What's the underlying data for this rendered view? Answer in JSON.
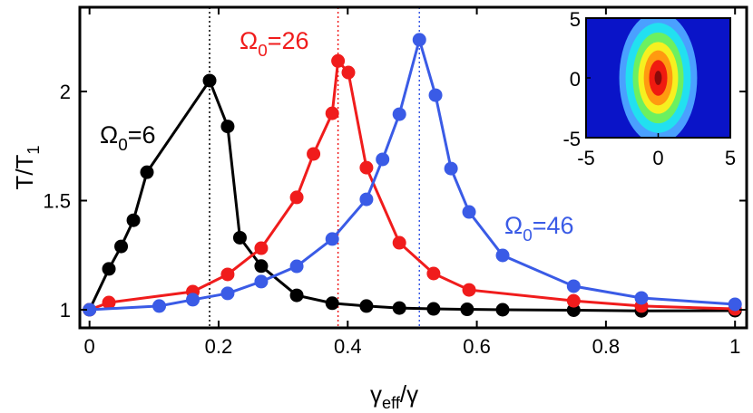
{
  "chart_data": [
    {
      "type": "line",
      "x_label": {
        "text": "γ",
        "subscript": "eff",
        "suffix": "/γ"
      },
      "y_label": {
        "text": "T/T",
        "subscript": "1"
      },
      "xlim": [
        -0.015,
        1.018
      ],
      "ylim": [
        0.917,
        2.386
      ],
      "xticks": [
        0,
        0.2,
        0.4,
        0.6,
        0.8,
        1
      ],
      "yticks": [
        1,
        1.5,
        2
      ],
      "annotations": [
        {
          "text": "Ω",
          "subscript": "0",
          "suffix": "=6",
          "color": "#000000"
        },
        {
          "text": "Ω",
          "subscript": "0",
          "suffix": "=26",
          "color": "#f01c1c"
        },
        {
          "text": "Ω",
          "subscript": "0",
          "suffix": "=46",
          "color": "#3a5be6"
        }
      ],
      "series": [
        {
          "color": "#000000",
          "peak_line_x": 0.186,
          "x": [
            0,
            0.03,
            0.049,
            0.068,
            0.089,
            0.186,
            0.214,
            0.233,
            0.266,
            0.321,
            0.376,
            0.429,
            0.48,
            0.533,
            0.585,
            0.64,
            0.75,
            0.855,
            1.0
          ],
          "values": [
            1,
            1.187,
            1.29,
            1.41,
            1.63,
            2.05,
            1.84,
            1.33,
            1.2,
            1.066,
            1.03,
            1.017,
            1.008,
            1.004,
            1.002,
            1.0,
            0.998,
            0.995,
            0.996
          ]
        },
        {
          "color": "#f01c1c",
          "peak_line_x": 0.385,
          "x": [
            0,
            0.03,
            0.16,
            0.214,
            0.266,
            0.321,
            0.347,
            0.376,
            0.385,
            0.401,
            0.429,
            0.48,
            0.533,
            0.588,
            0.75,
            0.855,
            1.0
          ],
          "values": [
            1,
            1.033,
            1.083,
            1.162,
            1.282,
            1.515,
            1.714,
            1.9,
            2.14,
            2.087,
            1.651,
            1.307,
            1.166,
            1.091,
            1.041,
            1.017,
            1.004
          ]
        },
        {
          "color": "#3a5be6",
          "peak_line_x": 0.511,
          "x": [
            0,
            0.108,
            0.16,
            0.214,
            0.266,
            0.321,
            0.376,
            0.429,
            0.454,
            0.48,
            0.511,
            0.536,
            0.56,
            0.588,
            0.64,
            0.75,
            0.855,
            1.0
          ],
          "values": [
            1,
            1.017,
            1.046,
            1.075,
            1.129,
            1.199,
            1.324,
            1.506,
            1.689,
            1.896,
            2.237,
            1.983,
            1.647,
            1.448,
            1.249,
            1.108,
            1.054,
            1.025
          ]
        }
      ]
    },
    {
      "type": "contour",
      "xlim": [
        -5,
        5
      ],
      "ylim": [
        -5,
        5
      ],
      "xticks": [
        -5,
        0,
        5
      ],
      "yticks": [
        -5,
        0,
        5
      ],
      "background": "#0a14c8",
      "contours": [
        {
          "color": "#4aa0ff",
          "rx": 2.7,
          "ry": 5.5
        },
        {
          "color": "#22e0f0",
          "rx": 2.26,
          "ry": 4.6
        },
        {
          "color": "#6cf060",
          "rx": 1.76,
          "ry": 3.8
        },
        {
          "color": "#f6f020",
          "rx": 1.38,
          "ry": 3.0
        },
        {
          "color": "#ff9a10",
          "rx": 1.0,
          "ry": 2.3
        },
        {
          "color": "#f01a10",
          "rx": 0.63,
          "ry": 1.5
        },
        {
          "color": "#8a0a0a",
          "rx": 0.25,
          "ry": 0.6
        }
      ]
    }
  ]
}
